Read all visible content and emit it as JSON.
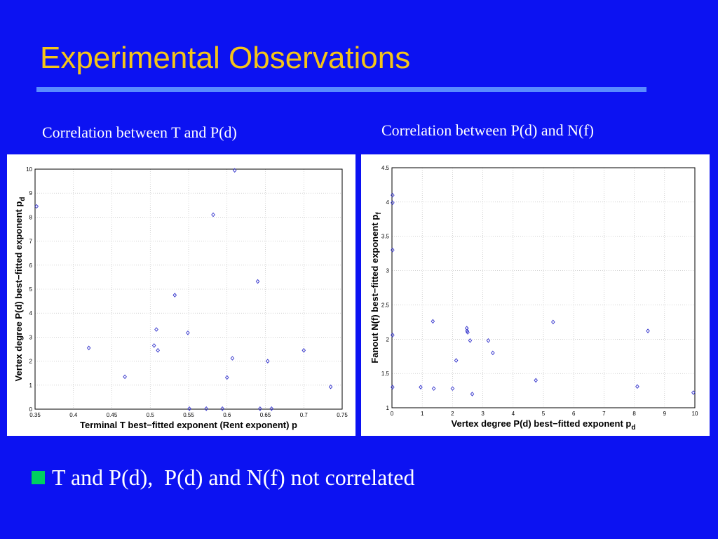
{
  "slide": {
    "title": "Experimental Observations",
    "captions": [
      "Correlation between T and P(d)",
      "Correlation between P(d) and N(f)"
    ],
    "bullet": "T and P(d),  P(d) and N(f) not correlated",
    "colors": {
      "background": "#0c12f2",
      "title": "#f5c518",
      "rule": "#5a8cff",
      "bullet": "#00d060",
      "marker": "#3333cc"
    }
  },
  "chart_data": [
    {
      "type": "scatter",
      "title": "",
      "xlabel": "Terminal T best−fitted exponent (Rent exponent) p",
      "ylabel": "Vertex degree P(d) best−fitted exponent p",
      "ylabel_subscript": "d",
      "xlim": [
        0.35,
        0.75
      ],
      "ylim": [
        0,
        10
      ],
      "xticks": [
        "0.35",
        "0.4",
        "0.45",
        "0.5",
        "0.55",
        "0.6",
        "0.65",
        "0.7",
        "0.75"
      ],
      "yticks": [
        "0",
        "1",
        "2",
        "3",
        "4",
        "5",
        "6",
        "7",
        "8",
        "9",
        "10"
      ],
      "grid": true,
      "marker": "diamond",
      "points": [
        [
          0.352,
          8.45
        ],
        [
          0.42,
          2.55
        ],
        [
          0.467,
          1.35
        ],
        [
          0.505,
          2.65
        ],
        [
          0.508,
          3.32
        ],
        [
          0.51,
          2.45
        ],
        [
          0.532,
          4.75
        ],
        [
          0.549,
          3.18
        ],
        [
          0.551,
          0.02
        ],
        [
          0.573,
          0.02
        ],
        [
          0.582,
          8.1
        ],
        [
          0.594,
          0.02
        ],
        [
          0.6,
          1.32
        ],
        [
          0.607,
          2.12
        ],
        [
          0.61,
          9.95
        ],
        [
          0.64,
          5.32
        ],
        [
          0.643,
          0.02
        ],
        [
          0.653,
          2.0
        ],
        [
          0.658,
          0.02
        ],
        [
          0.7,
          2.45
        ],
        [
          0.735,
          0.93
        ]
      ]
    },
    {
      "type": "scatter",
      "title": "",
      "xlabel": "Vertex degree P(d) best−fitted exponent p",
      "xlabel_subscript": "d",
      "ylabel": "Fanout N(f) best−fitted exponent p",
      "ylabel_subscript": "f",
      "xlim": [
        0,
        10
      ],
      "ylim": [
        1,
        4.5
      ],
      "xticks": [
        "0",
        "1",
        "2",
        "3",
        "4",
        "5",
        "6",
        "7",
        "8",
        "9",
        "10"
      ],
      "yticks": [
        "1",
        "1.5",
        "2",
        "2.5",
        "3",
        "3.5",
        "4",
        "4.5"
      ],
      "grid": true,
      "marker": "diamond",
      "points": [
        [
          0.02,
          4.1
        ],
        [
          0.02,
          3.99
        ],
        [
          0.02,
          3.3
        ],
        [
          0.02,
          2.06
        ],
        [
          0.02,
          1.3
        ],
        [
          0.95,
          1.3
        ],
        [
          1.35,
          2.26
        ],
        [
          1.38,
          1.28
        ],
        [
          2.0,
          1.28
        ],
        [
          2.12,
          1.69
        ],
        [
          2.47,
          2.16
        ],
        [
          2.48,
          2.12
        ],
        [
          2.5,
          2.1
        ],
        [
          2.58,
          1.98
        ],
        [
          2.65,
          1.2
        ],
        [
          3.18,
          1.98
        ],
        [
          3.33,
          1.8
        ],
        [
          4.75,
          1.4
        ],
        [
          5.32,
          2.25
        ],
        [
          8.1,
          1.31
        ],
        [
          8.45,
          2.12
        ],
        [
          9.95,
          1.22
        ]
      ]
    }
  ]
}
